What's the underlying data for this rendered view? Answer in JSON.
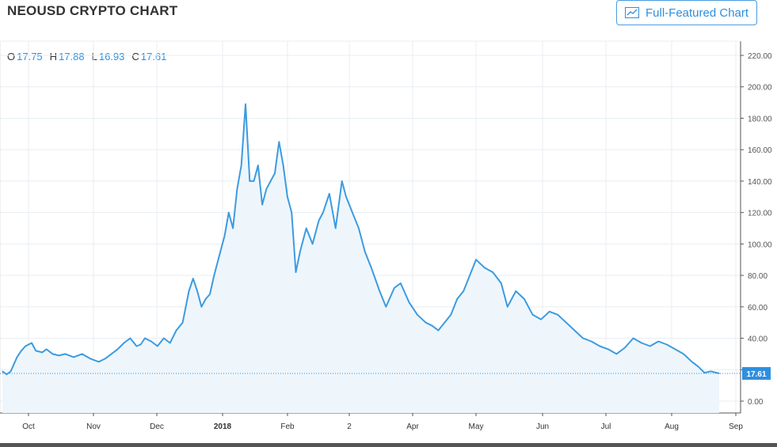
{
  "header": {
    "title": "NEOUSD CRYPTO CHART",
    "full_featured_label": "Full-Featured Chart"
  },
  "ohlc": {
    "o_label": "O",
    "o_value": "17.75",
    "h_label": "H",
    "h_value": "17.88",
    "l_label": "L",
    "l_value": "16.93",
    "c_label": "C",
    "c_value": "17.61"
  },
  "colors": {
    "line": "#3d9be0",
    "fill": "#eef6fc",
    "grid": "#e8eef3",
    "axis_text": "#555555",
    "price_tag_bg": "#2f8fde",
    "accent": "#2f8fde"
  },
  "chart_data": {
    "type": "area",
    "x_ticks": [
      "Oct",
      "Nov",
      "Dec",
      "2018",
      "Feb",
      "2",
      "Apr",
      "May",
      "Jun",
      "Jul",
      "Aug",
      "Sep"
    ],
    "y_ticks": [
      "220.00",
      "200.00",
      "180.00",
      "160.00",
      "140.00",
      "120.00",
      "100.00",
      "80.00",
      "60.00",
      "40.00",
      "20.00",
      "0.00"
    ],
    "ylim": [
      0,
      220
    ],
    "last_price_label": "17.61",
    "last_price": 17.61,
    "grid": true,
    "series": [
      {
        "x": [
          "2017-09-19",
          "2017-09-21",
          "2017-09-23",
          "2017-09-26",
          "2017-09-28",
          "2017-09-30",
          "2017-10-03",
          "2017-10-05",
          "2017-10-08",
          "2017-10-10",
          "2017-10-13",
          "2017-10-16",
          "2017-10-19",
          "2017-10-23",
          "2017-10-27",
          "2017-10-31",
          "2017-11-04",
          "2017-11-07",
          "2017-11-10",
          "2017-11-13",
          "2017-11-16",
          "2017-11-19",
          "2017-11-22",
          "2017-11-24",
          "2017-11-26",
          "2017-11-29",
          "2017-12-02",
          "2017-12-05",
          "2017-12-08",
          "2017-12-11",
          "2017-12-14",
          "2017-12-17",
          "2017-12-19",
          "2017-12-21",
          "2017-12-23",
          "2017-12-25",
          "2017-12-27",
          "2017-12-29",
          "2018-01-01",
          "2018-01-03",
          "2018-01-05",
          "2018-01-07",
          "2018-01-09",
          "2018-01-11",
          "2018-01-13",
          "2018-01-15",
          "2018-01-17",
          "2018-01-19",
          "2018-01-21",
          "2018-01-23",
          "2018-01-25",
          "2018-01-27",
          "2018-01-29",
          "2018-01-31",
          "2018-02-02",
          "2018-02-04",
          "2018-02-06",
          "2018-02-08",
          "2018-02-11",
          "2018-02-14",
          "2018-02-17",
          "2018-02-19",
          "2018-02-22",
          "2018-02-25",
          "2018-02-28",
          "2018-03-02",
          "2018-03-05",
          "2018-03-08",
          "2018-03-11",
          "2018-03-14",
          "2018-03-18",
          "2018-03-21",
          "2018-03-25",
          "2018-03-28",
          "2018-04-01",
          "2018-04-05",
          "2018-04-09",
          "2018-04-12",
          "2018-04-15",
          "2018-04-18",
          "2018-04-21",
          "2018-04-24",
          "2018-04-27",
          "2018-04-30",
          "2018-05-03",
          "2018-05-07",
          "2018-05-11",
          "2018-05-15",
          "2018-05-18",
          "2018-05-22",
          "2018-05-26",
          "2018-05-30",
          "2018-06-03",
          "2018-06-07",
          "2018-06-11",
          "2018-06-15",
          "2018-06-19",
          "2018-06-23",
          "2018-06-27",
          "2018-07-01",
          "2018-07-05",
          "2018-07-09",
          "2018-07-13",
          "2018-07-17",
          "2018-07-21",
          "2018-07-25",
          "2018-07-29",
          "2018-08-02",
          "2018-08-06",
          "2018-08-10",
          "2018-08-14",
          "2018-08-17",
          "2018-08-20",
          "2018-08-23",
          "2018-08-27"
        ],
        "values": [
          19,
          17,
          19,
          28,
          32,
          35,
          37,
          32,
          31,
          33,
          30,
          29,
          30,
          28,
          30,
          27,
          25,
          27,
          30,
          33,
          37,
          40,
          35,
          36,
          40,
          38,
          35,
          40,
          37,
          45,
          50,
          70,
          78,
          70,
          60,
          65,
          68,
          80,
          95,
          105,
          120,
          110,
          135,
          150,
          189,
          140,
          140,
          150,
          125,
          135,
          140,
          145,
          165,
          150,
          130,
          120,
          82,
          95,
          110,
          100,
          115,
          120,
          132,
          110,
          140,
          130,
          120,
          110,
          95,
          85,
          70,
          60,
          72,
          75,
          63,
          55,
          50,
          48,
          45,
          50,
          55,
          65,
          70,
          80,
          90,
          85,
          82,
          75,
          60,
          70,
          65,
          55,
          52,
          57,
          55,
          50,
          45,
          40,
          38,
          35,
          33,
          30,
          34,
          40,
          37,
          35,
          38,
          36,
          33,
          30,
          25,
          22,
          18,
          19,
          17.61
        ]
      }
    ]
  }
}
